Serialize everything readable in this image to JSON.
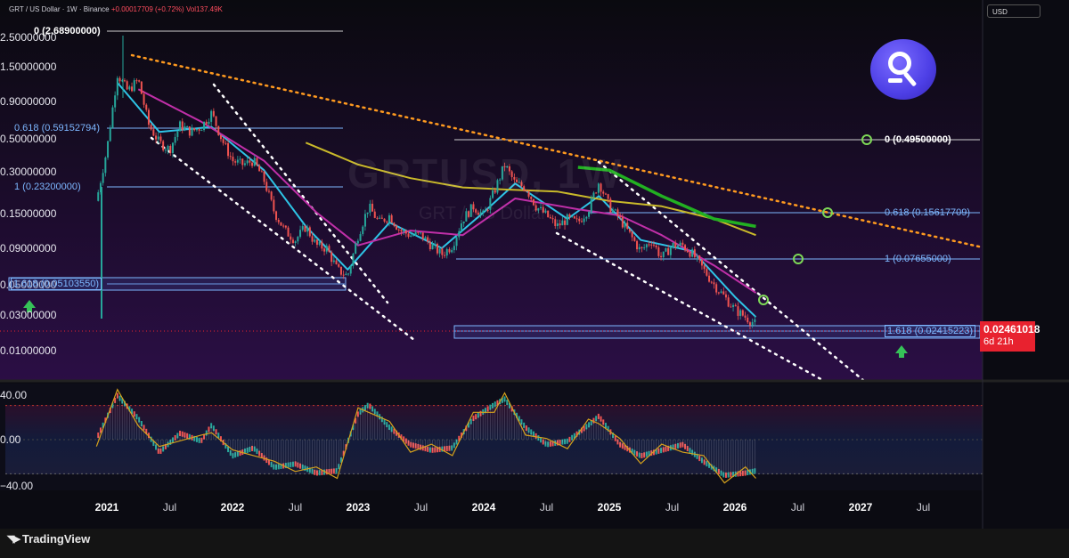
{
  "header": {
    "symbol_line": "GRT / US Dollar · 1W · Binance",
    "change": "+0.00017709 (+0.72%)",
    "volume": "Vol137.49K"
  },
  "currency_button": "USD",
  "watermark": {
    "ticker": "GRTUSD, 1W",
    "name": "GRT / US Dollar"
  },
  "price_tag": {
    "price": "0.02461018",
    "countdown": "6d 21h"
  },
  "colors": {
    "up": "#26a69a",
    "down": "#ef5350",
    "ema_fast": "#2ec4e6",
    "ema_mid": "#c02fa8",
    "ema_slow": "#c9b92a",
    "ema_long": "#22b022",
    "trendline": "#ff9a1f",
    "fib": "#7db7ff",
    "brand": "#4d3fe6"
  },
  "icons": [
    "tradingview-logo-icon",
    "graph-logo-icon",
    "arrow-up-icon",
    "target-circle-icon"
  ],
  "footer": {
    "brand": "TradingView"
  },
  "chart_data": {
    "type": "candlestick",
    "scale": "log",
    "y_ticks": [
      "2.50000000",
      "1.50000000",
      "0.90000000",
      "0.50000000",
      "0.30000000",
      "0.15000000",
      "0.09000000",
      "0.05000000",
      "0.03000000",
      "0.01000000"
    ],
    "x_ticks": [
      {
        "label": "2021",
        "year": true
      },
      {
        "label": "Jul",
        "year": false
      },
      {
        "label": "2022",
        "year": true
      },
      {
        "label": "Jul",
        "year": false
      },
      {
        "label": "2023",
        "year": true
      },
      {
        "label": "Jul",
        "year": false
      },
      {
        "label": "2024",
        "year": true
      },
      {
        "label": "Jul",
        "year": false
      },
      {
        "label": "2025",
        "year": true
      },
      {
        "label": "Jul",
        "year": false
      },
      {
        "label": "2026",
        "year": true
      },
      {
        "label": "Jul",
        "year": false
      },
      {
        "label": "2027",
        "year": true
      },
      {
        "label": "Jul",
        "year": false
      }
    ],
    "fib_left": [
      {
        "label": "0 (2.68900000)",
        "value": 2.689,
        "style": "white"
      },
      {
        "label": "0.618 (0.59152794)",
        "value": 0.5915,
        "style": "blue"
      },
      {
        "label": "1 (0.23200000)",
        "value": 0.232,
        "style": "blue"
      },
      {
        "label": "1.618 (0.05103550)",
        "value": 0.051,
        "style": "boxed"
      }
    ],
    "fib_right": [
      {
        "label": "0 (0.49500000)",
        "value": 0.495,
        "style": "white"
      },
      {
        "label": "0.618 (0.15617709)",
        "value": 0.1562,
        "style": "blue"
      },
      {
        "label": "1 (0.07655000)",
        "value": 0.0766,
        "style": "blue"
      },
      {
        "label": "1.618 (0.02415223)",
        "value": 0.0242,
        "style": "boxed"
      }
    ],
    "close_path": [
      [
        "2020-12",
        0.22
      ],
      [
        "2021-01",
        0.55
      ],
      [
        "2021-02",
        2.1
      ],
      [
        "2021-03",
        1.55
      ],
      [
        "2021-04",
        1.9
      ],
      [
        "2021-05",
        0.85
      ],
      [
        "2021-06",
        0.62
      ],
      [
        "2021-07",
        0.55
      ],
      [
        "2021-08",
        0.85
      ],
      [
        "2021-09",
        0.75
      ],
      [
        "2021-10",
        0.82
      ],
      [
        "2021-11",
        1.05
      ],
      [
        "2021-12",
        0.65
      ],
      [
        "2022-01",
        0.45
      ],
      [
        "2022-02",
        0.42
      ],
      [
        "2022-03",
        0.45
      ],
      [
        "2022-04",
        0.32
      ],
      [
        "2022-05",
        0.18
      ],
      [
        "2022-06",
        0.13
      ],
      [
        "2022-07",
        0.11
      ],
      [
        "2022-08",
        0.14
      ],
      [
        "2022-09",
        0.1
      ],
      [
        "2022-10",
        0.095
      ],
      [
        "2022-11",
        0.065
      ],
      [
        "2022-12",
        0.058
      ],
      [
        "2023-01",
        0.12
      ],
      [
        "2023-02",
        0.2
      ],
      [
        "2023-03",
        0.15
      ],
      [
        "2023-04",
        0.17
      ],
      [
        "2023-05",
        0.13
      ],
      [
        "2023-06",
        0.12
      ],
      [
        "2023-07",
        0.12
      ],
      [
        "2023-08",
        0.1
      ],
      [
        "2023-09",
        0.085
      ],
      [
        "2023-10",
        0.1
      ],
      [
        "2023-11",
        0.16
      ],
      [
        "2023-12",
        0.2
      ],
      [
        "2024-01",
        0.17
      ],
      [
        "2024-02",
        0.26
      ],
      [
        "2024-03",
        0.42
      ],
      [
        "2024-04",
        0.3
      ],
      [
        "2024-05",
        0.28
      ],
      [
        "2024-06",
        0.2
      ],
      [
        "2024-07",
        0.17
      ],
      [
        "2024-08",
        0.14
      ],
      [
        "2024-09",
        0.16
      ],
      [
        "2024-10",
        0.15
      ],
      [
        "2024-11",
        0.19
      ],
      [
        "2024-12",
        0.31
      ],
      [
        "2025-01",
        0.2
      ],
      [
        "2025-02",
        0.16
      ],
      [
        "2025-03",
        0.12
      ],
      [
        "2025-04",
        0.09
      ],
      [
        "2025-05",
        0.11
      ],
      [
        "2025-06",
        0.08
      ],
      [
        "2025-07",
        0.1
      ],
      [
        "2025-08",
        0.1
      ],
      [
        "2025-09",
        0.085
      ],
      [
        "2025-10",
        0.065
      ],
      [
        "2025-11",
        0.05
      ],
      [
        "2025-12",
        0.04
      ],
      [
        "2026-01",
        0.032
      ],
      [
        "2026-02",
        0.028
      ],
      [
        "2026-03",
        0.0246
      ]
    ],
    "ma_lines": [
      {
        "name": "ema_fast",
        "points": [
          [
            "2021-02",
            1.8
          ],
          [
            "2021-06",
            0.75
          ],
          [
            "2021-11",
            0.82
          ],
          [
            "2022-04",
            0.38
          ],
          [
            "2022-08",
            0.14
          ],
          [
            "2022-12",
            0.065
          ],
          [
            "2023-04",
            0.15
          ],
          [
            "2023-09",
            0.095
          ],
          [
            "2024-01",
            0.18
          ],
          [
            "2024-04",
            0.3
          ],
          [
            "2024-09",
            0.16
          ],
          [
            "2024-12",
            0.24
          ],
          [
            "2025-04",
            0.11
          ],
          [
            "2025-09",
            0.09
          ],
          [
            "2026-01",
            0.04
          ],
          [
            "2026-03",
            0.028
          ]
        ]
      },
      {
        "name": "ema_mid",
        "points": [
          [
            "2021-04",
            1.6
          ],
          [
            "2021-10",
            0.9
          ],
          [
            "2022-04",
            0.45
          ],
          [
            "2022-09",
            0.18
          ],
          [
            "2023-01",
            0.1
          ],
          [
            "2023-06",
            0.13
          ],
          [
            "2023-11",
            0.12
          ],
          [
            "2024-04",
            0.23
          ],
          [
            "2024-10",
            0.19
          ],
          [
            "2025-02",
            0.17
          ],
          [
            "2025-06",
            0.12
          ],
          [
            "2025-11",
            0.07
          ],
          [
            "2026-03",
            0.043
          ]
        ]
      },
      {
        "name": "ema_slow",
        "points": [
          [
            "2022-08",
            0.62
          ],
          [
            "2023-01",
            0.42
          ],
          [
            "2023-06",
            0.33
          ],
          [
            "2023-11",
            0.28
          ],
          [
            "2024-03",
            0.27
          ],
          [
            "2024-08",
            0.26
          ],
          [
            "2025-01",
            0.22
          ],
          [
            "2025-06",
            0.2
          ],
          [
            "2025-11",
            0.16
          ],
          [
            "2026-03",
            0.12
          ]
        ]
      },
      {
        "name": "ema_long",
        "points": [
          [
            "2024-10",
            0.4
          ],
          [
            "2025-01",
            0.38
          ],
          [
            "2025-06",
            0.24
          ],
          [
            "2025-11",
            0.16
          ],
          [
            "2026-03",
            0.14
          ]
        ]
      }
    ],
    "oscillator": {
      "y_ticks": [
        "40.00",
        "0.00",
        "−40.00"
      ],
      "upper_band": 30,
      "lower_band": -30,
      "y_range": [
        -55,
        55
      ],
      "values": [
        [
          "2020-12",
          0
        ],
        [
          "2021-02",
          38
        ],
        [
          "2021-04",
          18
        ],
        [
          "2021-06",
          -12
        ],
        [
          "2021-08",
          5
        ],
        [
          "2021-10",
          -2
        ],
        [
          "2021-11",
          12
        ],
        [
          "2022-01",
          -15
        ],
        [
          "2022-03",
          -8
        ],
        [
          "2022-05",
          -25
        ],
        [
          "2022-07",
          -22
        ],
        [
          "2022-09",
          -30
        ],
        [
          "2022-11",
          -28
        ],
        [
          "2023-01",
          22
        ],
        [
          "2023-02",
          30
        ],
        [
          "2023-04",
          10
        ],
        [
          "2023-06",
          -5
        ],
        [
          "2023-08",
          -10
        ],
        [
          "2023-10",
          -8
        ],
        [
          "2023-12",
          18
        ],
        [
          "2024-02",
          30
        ],
        [
          "2024-03",
          35
        ],
        [
          "2024-05",
          10
        ],
        [
          "2024-07",
          -5
        ],
        [
          "2024-09",
          -2
        ],
        [
          "2024-11",
          12
        ],
        [
          "2024-12",
          20
        ],
        [
          "2025-02",
          -5
        ],
        [
          "2025-04",
          -15
        ],
        [
          "2025-06",
          -10
        ],
        [
          "2025-08",
          -5
        ],
        [
          "2025-10",
          -20
        ],
        [
          "2025-12",
          -32
        ],
        [
          "2026-02",
          -30
        ],
        [
          "2026-03",
          -28
        ]
      ]
    }
  }
}
